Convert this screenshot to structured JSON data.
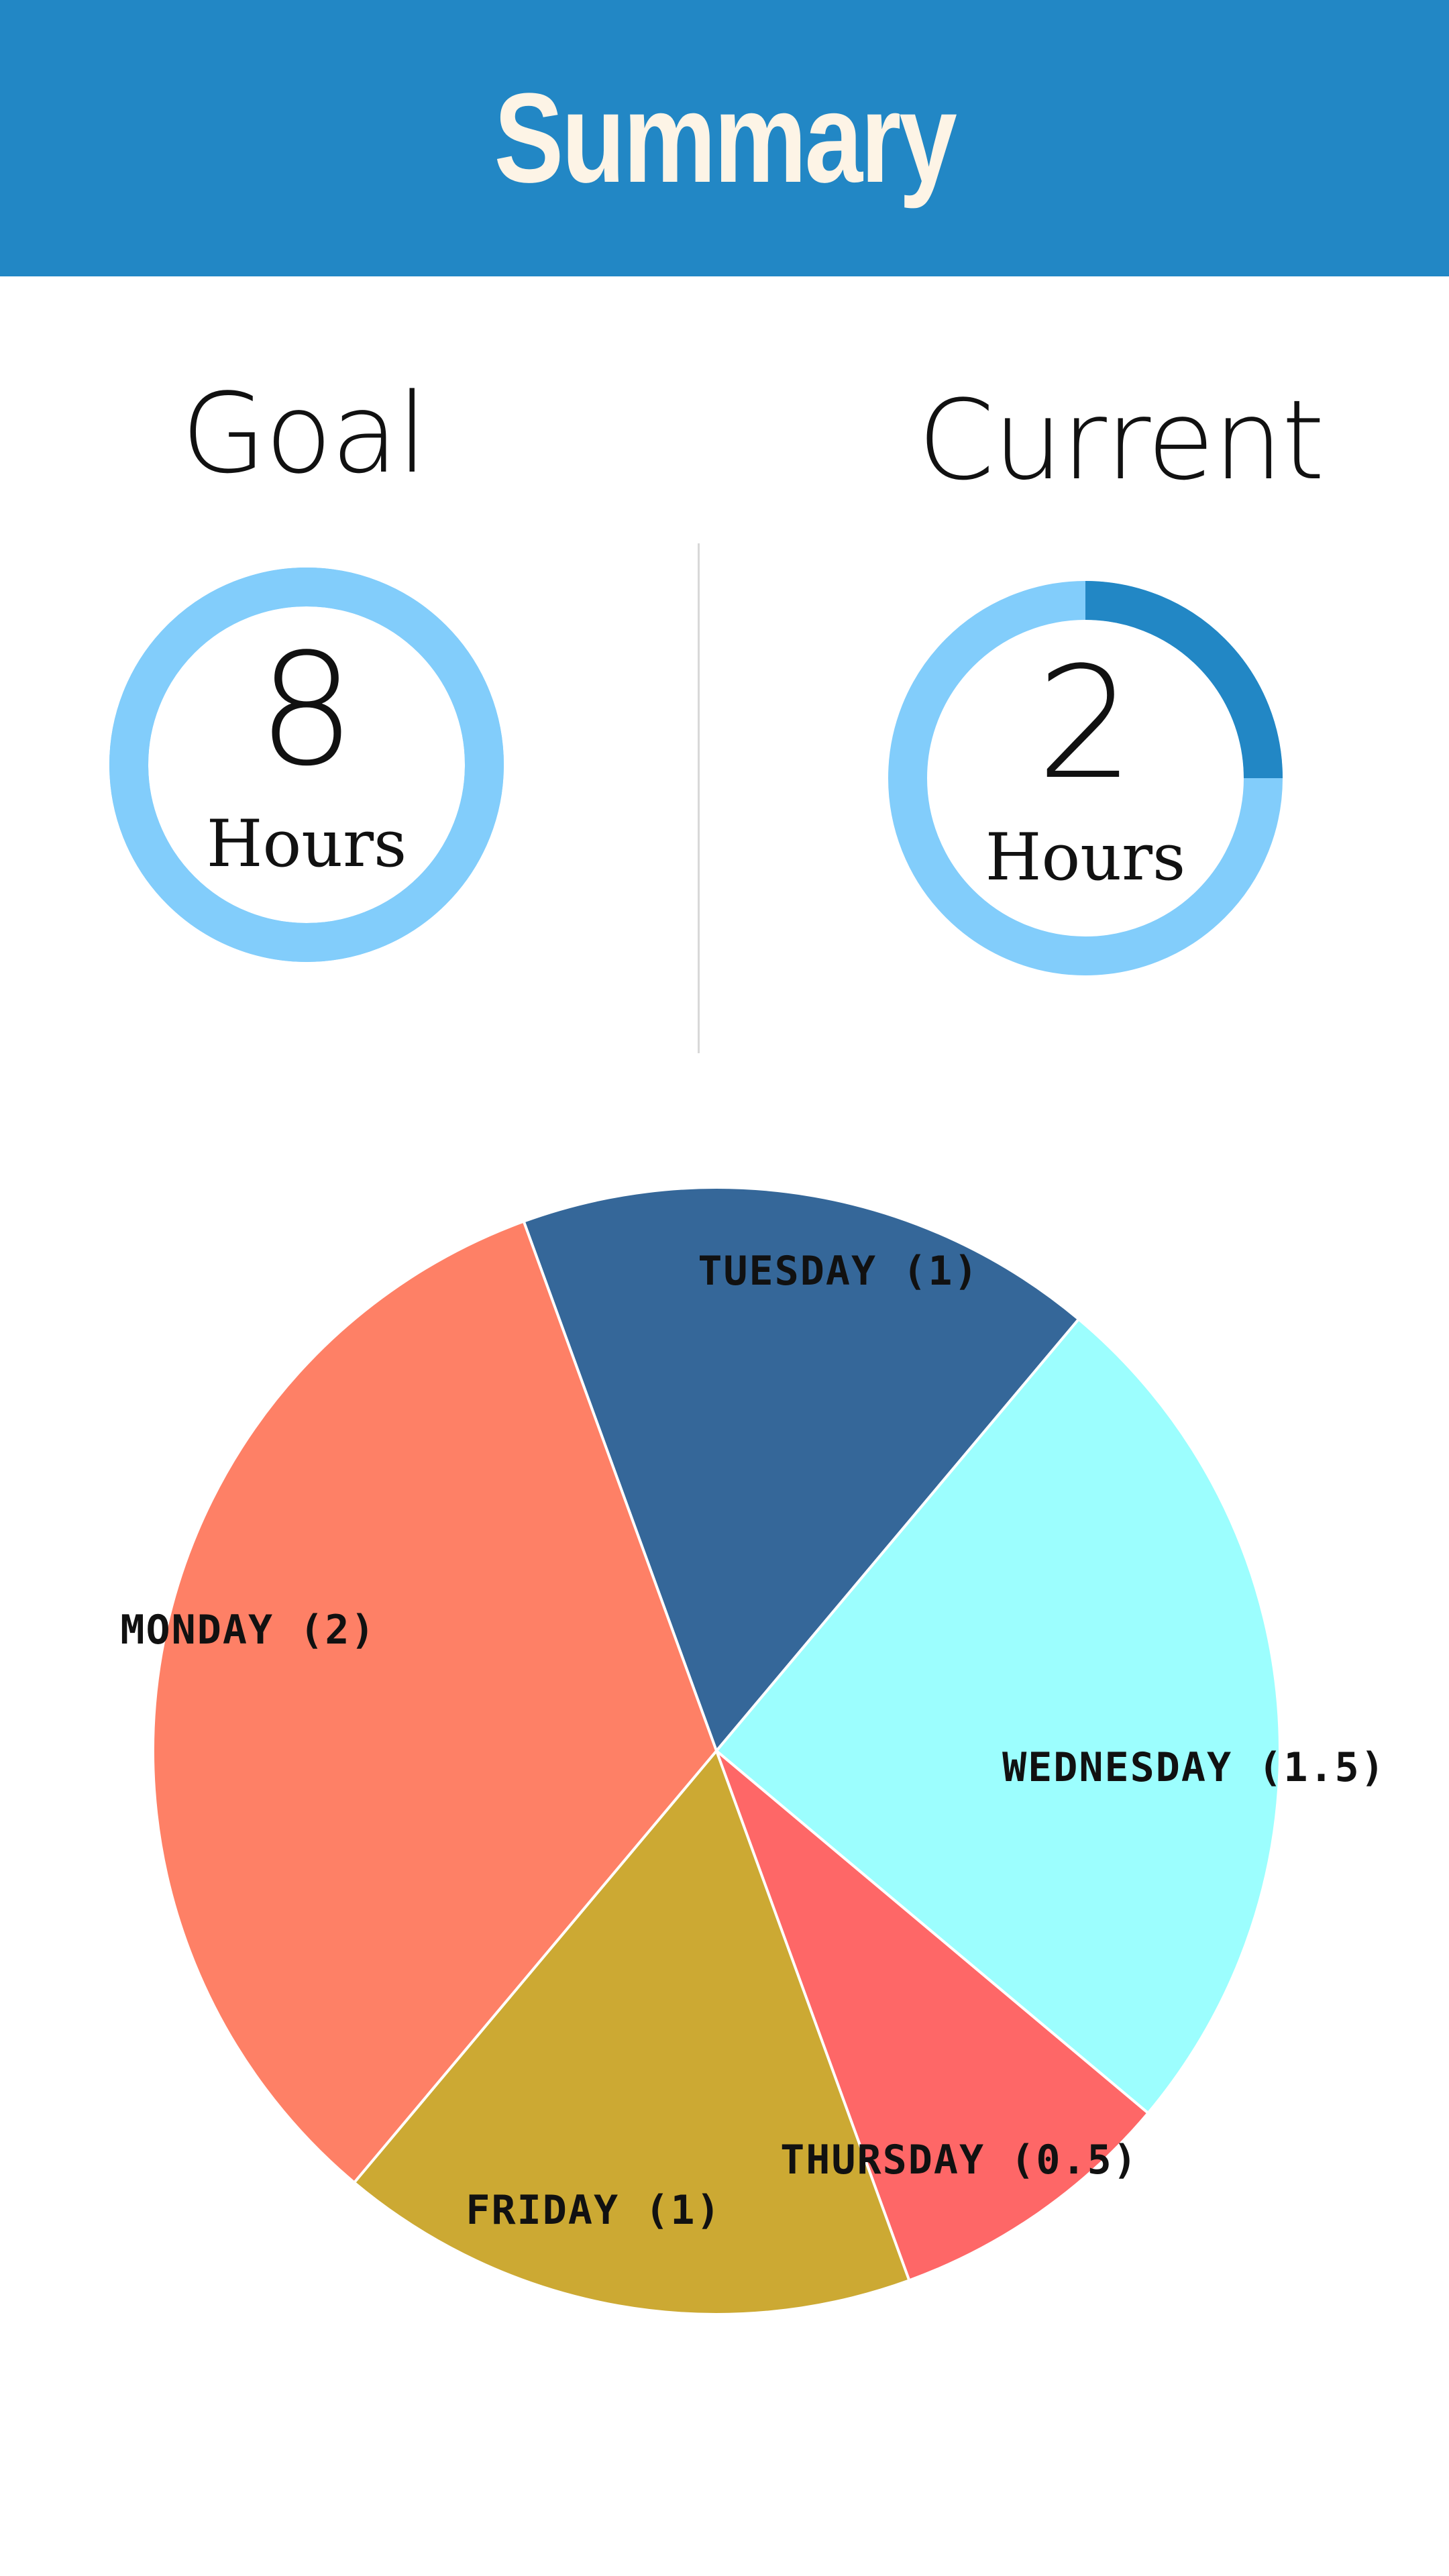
{
  "header": {
    "title": "Summary"
  },
  "goal": {
    "title": "Goal",
    "value": "8",
    "unit": "Hours",
    "progress": 1.0
  },
  "current": {
    "title": "Current",
    "value": "2",
    "unit": "Hours",
    "progress": 0.25
  },
  "colors": {
    "header_bg": "#2287c5",
    "header_text": "#fdf4e6",
    "ring_track": "#82cdfb",
    "ring_fill": "#2287c5"
  },
  "chart_data": {
    "type": "pie",
    "slices": [
      {
        "label": "TUESDAY (1)",
        "value": 1,
        "color": "#356799"
      },
      {
        "label": "WEDNESDAY (1.5)",
        "value": 1.5,
        "color": "#9cfefe"
      },
      {
        "label": "THURSDAY (0.5)",
        "value": 0.5,
        "color": "#fe6767"
      },
      {
        "label": "FRIDAY (1)",
        "value": 1,
        "color": "#cca933"
      },
      {
        "label": "MONDAY (2)",
        "value": 2,
        "color": "#fe8066"
      }
    ]
  }
}
